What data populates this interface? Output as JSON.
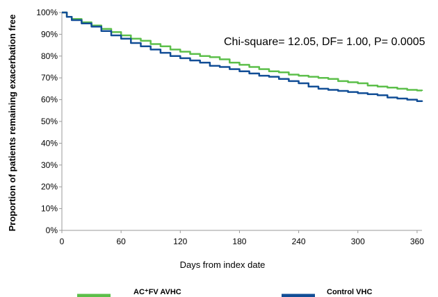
{
  "chart_data": {
    "type": "line",
    "xlabel": "Days from index date",
    "ylabel": "Proportion of patients remaining exacerbation free",
    "xlim": [
      0,
      365
    ],
    "ylim": [
      0,
      100
    ],
    "x_ticks": [
      "0",
      "60",
      "120",
      "180",
      "240",
      "300",
      "360"
    ],
    "y_ticks": [
      "0%",
      "10%",
      "20%",
      "30%",
      "40%",
      "50%",
      "60%",
      "70%",
      "80%",
      "90%",
      "100%"
    ],
    "annotation": "Chi-square= 12.05, DF= 1.00, P= 0.0005",
    "legend_position": "bottom",
    "series": [
      {
        "name": "AC⁺FV AVHC",
        "color": "#5cbf4a",
        "x": [
          0,
          5,
          10,
          20,
          30,
          40,
          50,
          60,
          70,
          80,
          90,
          100,
          110,
          120,
          130,
          140,
          150,
          160,
          170,
          180,
          190,
          200,
          210,
          220,
          230,
          240,
          250,
          260,
          270,
          280,
          290,
          300,
          310,
          320,
          330,
          340,
          350,
          360,
          365
        ],
        "y": [
          100,
          98,
          97,
          95.5,
          94,
          92.5,
          91,
          89.5,
          88,
          87,
          85.5,
          84.5,
          83,
          82,
          81,
          80,
          79.5,
          78.5,
          77,
          76,
          75,
          74,
          73,
          72.5,
          71.5,
          71,
          70.5,
          70,
          69.5,
          68.5,
          68,
          67.5,
          66.5,
          66,
          65.5,
          65,
          64.5,
          64.2,
          64
        ]
      },
      {
        "name": "Control VHC",
        "color": "#124e96",
        "x": [
          0,
          5,
          10,
          20,
          30,
          40,
          50,
          60,
          70,
          80,
          90,
          100,
          110,
          120,
          130,
          140,
          150,
          160,
          170,
          180,
          190,
          200,
          210,
          220,
          230,
          240,
          250,
          260,
          270,
          280,
          290,
          300,
          310,
          320,
          330,
          340,
          350,
          360,
          365
        ],
        "y": [
          100,
          98,
          96.5,
          95,
          93.5,
          91.5,
          89.5,
          88,
          86,
          84.5,
          83,
          81.5,
          80,
          79,
          78,
          77,
          75.5,
          75,
          74,
          73,
          72,
          71,
          70.5,
          69.5,
          68.5,
          67.5,
          66,
          65,
          64.5,
          64,
          63.5,
          63,
          62.5,
          62,
          61,
          60.5,
          60,
          59.3,
          59
        ]
      }
    ]
  }
}
